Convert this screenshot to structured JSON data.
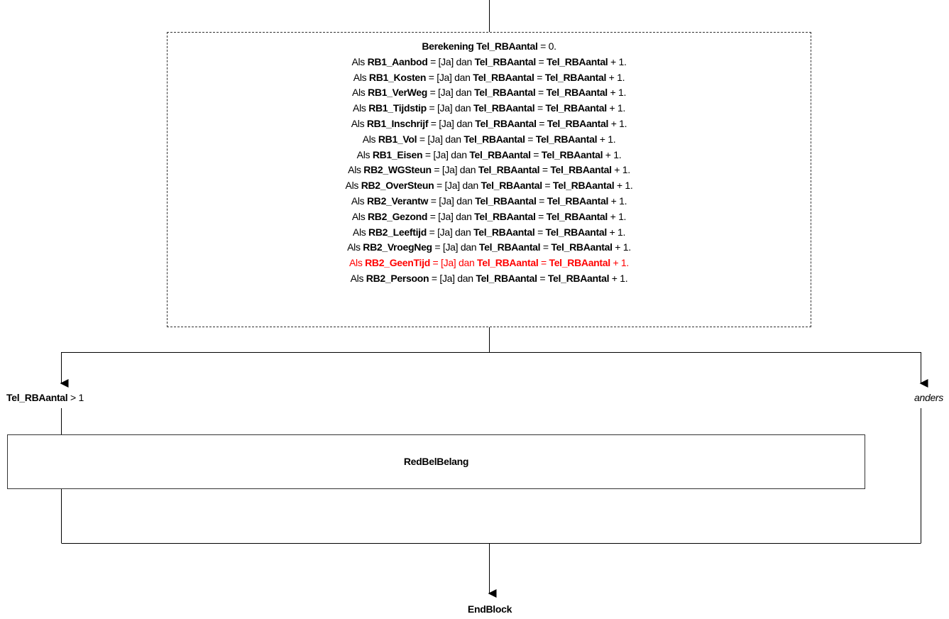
{
  "calculation": {
    "lines": [
      {
        "highlight": false,
        "parts": [
          {
            "b": true,
            "t": "Berekening Tel_RBAantal"
          },
          {
            "b": false,
            "t": " = 0."
          }
        ]
      },
      {
        "highlight": false,
        "parts": [
          {
            "b": false,
            "t": "Als "
          },
          {
            "b": true,
            "t": "RB1_Aanbod"
          },
          {
            "b": false,
            "t": " = [Ja] dan "
          },
          {
            "b": true,
            "t": "Tel_RBAantal"
          },
          {
            "b": false,
            "t": " = "
          },
          {
            "b": true,
            "t": "Tel_RBAantal"
          },
          {
            "b": false,
            "t": " + 1."
          }
        ]
      },
      {
        "highlight": false,
        "parts": [
          {
            "b": false,
            "t": "Als "
          },
          {
            "b": true,
            "t": "RB1_Kosten"
          },
          {
            "b": false,
            "t": " = [Ja] dan "
          },
          {
            "b": true,
            "t": "Tel_RBAantal"
          },
          {
            "b": false,
            "t": " = "
          },
          {
            "b": true,
            "t": "Tel_RBAantal"
          },
          {
            "b": false,
            "t": " + 1."
          }
        ]
      },
      {
        "highlight": false,
        "parts": [
          {
            "b": false,
            "t": "Als "
          },
          {
            "b": true,
            "t": "RB1_VerWeg"
          },
          {
            "b": false,
            "t": " = [Ja] dan "
          },
          {
            "b": true,
            "t": "Tel_RBAantal"
          },
          {
            "b": false,
            "t": " = "
          },
          {
            "b": true,
            "t": "Tel_RBAantal"
          },
          {
            "b": false,
            "t": " + 1."
          }
        ]
      },
      {
        "highlight": false,
        "parts": [
          {
            "b": false,
            "t": "Als "
          },
          {
            "b": true,
            "t": "RB1_Tijdstip"
          },
          {
            "b": false,
            "t": " = [Ja] dan "
          },
          {
            "b": true,
            "t": "Tel_RBAantal"
          },
          {
            "b": false,
            "t": " = "
          },
          {
            "b": true,
            "t": "Tel_RBAantal"
          },
          {
            "b": false,
            "t": " + 1."
          }
        ]
      },
      {
        "highlight": false,
        "parts": [
          {
            "b": false,
            "t": "Als "
          },
          {
            "b": true,
            "t": "RB1_Inschrijf"
          },
          {
            "b": false,
            "t": " = [Ja] dan "
          },
          {
            "b": true,
            "t": "Tel_RBAantal"
          },
          {
            "b": false,
            "t": " = "
          },
          {
            "b": true,
            "t": "Tel_RBAantal"
          },
          {
            "b": false,
            "t": " + 1."
          }
        ]
      },
      {
        "highlight": false,
        "parts": [
          {
            "b": false,
            "t": "Als "
          },
          {
            "b": true,
            "t": "RB1_Vol"
          },
          {
            "b": false,
            "t": " = [Ja] dan "
          },
          {
            "b": true,
            "t": "Tel_RBAantal"
          },
          {
            "b": false,
            "t": " = "
          },
          {
            "b": true,
            "t": "Tel_RBAantal"
          },
          {
            "b": false,
            "t": " + 1."
          }
        ]
      },
      {
        "highlight": false,
        "parts": [
          {
            "b": false,
            "t": "Als "
          },
          {
            "b": true,
            "t": "RB1_Eisen"
          },
          {
            "b": false,
            "t": " = [Ja] dan "
          },
          {
            "b": true,
            "t": "Tel_RBAantal"
          },
          {
            "b": false,
            "t": " = "
          },
          {
            "b": true,
            "t": "Tel_RBAantal"
          },
          {
            "b": false,
            "t": " + 1."
          }
        ]
      },
      {
        "highlight": false,
        "parts": [
          {
            "b": false,
            "t": "Als "
          },
          {
            "b": true,
            "t": "RB2_WGSteun"
          },
          {
            "b": false,
            "t": " = [Ja] dan "
          },
          {
            "b": true,
            "t": "Tel_RBAantal"
          },
          {
            "b": false,
            "t": " = "
          },
          {
            "b": true,
            "t": "Tel_RBAantal"
          },
          {
            "b": false,
            "t": " + 1."
          }
        ]
      },
      {
        "highlight": false,
        "parts": [
          {
            "b": false,
            "t": "Als "
          },
          {
            "b": true,
            "t": "RB2_OverSteun"
          },
          {
            "b": false,
            "t": " = [Ja] dan "
          },
          {
            "b": true,
            "t": "Tel_RBAantal"
          },
          {
            "b": false,
            "t": " = "
          },
          {
            "b": true,
            "t": "Tel_RBAantal"
          },
          {
            "b": false,
            "t": " + 1."
          }
        ]
      },
      {
        "highlight": false,
        "parts": [
          {
            "b": false,
            "t": "Als "
          },
          {
            "b": true,
            "t": "RB2_Verantw"
          },
          {
            "b": false,
            "t": " = [Ja] dan "
          },
          {
            "b": true,
            "t": "Tel_RBAantal"
          },
          {
            "b": false,
            "t": " = "
          },
          {
            "b": true,
            "t": "Tel_RBAantal"
          },
          {
            "b": false,
            "t": " + 1."
          }
        ]
      },
      {
        "highlight": false,
        "parts": [
          {
            "b": false,
            "t": "Als "
          },
          {
            "b": true,
            "t": "RB2_Gezond"
          },
          {
            "b": false,
            "t": " = [Ja] dan "
          },
          {
            "b": true,
            "t": "Tel_RBAantal"
          },
          {
            "b": false,
            "t": " = "
          },
          {
            "b": true,
            "t": "Tel_RBAantal"
          },
          {
            "b": false,
            "t": " + 1."
          }
        ]
      },
      {
        "highlight": false,
        "parts": [
          {
            "b": false,
            "t": "Als "
          },
          {
            "b": true,
            "t": "RB2_Leeftijd"
          },
          {
            "b": false,
            "t": " = [Ja] dan "
          },
          {
            "b": true,
            "t": "Tel_RBAantal"
          },
          {
            "b": false,
            "t": " = "
          },
          {
            "b": true,
            "t": "Tel_RBAantal"
          },
          {
            "b": false,
            "t": " + 1."
          }
        ]
      },
      {
        "highlight": false,
        "parts": [
          {
            "b": false,
            "t": "Als "
          },
          {
            "b": true,
            "t": "RB2_VroegNeg"
          },
          {
            "b": false,
            "t": " = [Ja] dan "
          },
          {
            "b": true,
            "t": "Tel_RBAantal"
          },
          {
            "b": false,
            "t": " = "
          },
          {
            "b": true,
            "t": "Tel_RBAantal"
          },
          {
            "b": false,
            "t": " + 1."
          }
        ]
      },
      {
        "highlight": true,
        "parts": [
          {
            "b": false,
            "t": "Als "
          },
          {
            "b": true,
            "t": "RB2_GeenTijd"
          },
          {
            "b": false,
            "t": " = [Ja] dan "
          },
          {
            "b": true,
            "t": "Tel_RBAantal"
          },
          {
            "b": false,
            "t": " = "
          },
          {
            "b": true,
            "t": "Tel_RBAantal"
          },
          {
            "b": false,
            "t": " + 1."
          }
        ]
      },
      {
        "highlight": false,
        "parts": [
          {
            "b": false,
            "t": "Als "
          },
          {
            "b": true,
            "t": "RB2_Persoon"
          },
          {
            "b": false,
            "t": " = [Ja] dan "
          },
          {
            "b": true,
            "t": "Tel_RBAantal"
          },
          {
            "b": false,
            "t": " = "
          },
          {
            "b": true,
            "t": "Tel_RBAantal"
          },
          {
            "b": false,
            "t": " + 1."
          }
        ]
      }
    ]
  },
  "condition": {
    "variable": "Tel_RBAantal",
    "operator_text": " > 1"
  },
  "else_label": "anders",
  "block": {
    "label": "RedBelBelang"
  },
  "end": {
    "label": "EndBlock"
  },
  "colors": {
    "highlight": "#ff0000",
    "line": "#000000",
    "border": "#333333"
  }
}
